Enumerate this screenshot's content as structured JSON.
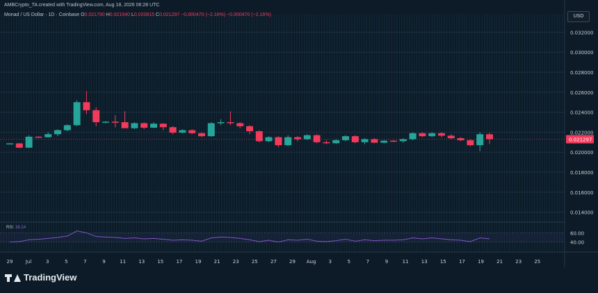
{
  "header": {
    "attribution": "AMBCrypto_TA created with TradingView.com, Aug 18, 2026 06:28 UTC",
    "symbol_desc": "Monad / US Dollar · 1D · Coinbase",
    "o_label": "O",
    "o_value": "0.021790",
    "h_label": "H",
    "h_value": "0.021940",
    "l_label": "L",
    "l_value": "0.020815",
    "c_label": "C",
    "c_value": "0.021297",
    "change": "−0.000470 (−2.16%)",
    "change2": "−0.000470 (−2.16%)"
  },
  "currency_button": "USD",
  "price_axis": {
    "ticks": [
      "0.032000",
      "0.030000",
      "0.028000",
      "0.026000",
      "0.024000",
      "0.022000",
      "0.020000",
      "0.018000",
      "0.016000",
      "0.014000"
    ],
    "last_price": "0.021297"
  },
  "rsi": {
    "label": "RSI",
    "value": "38.24",
    "levels": [
      "60.00",
      "40.00"
    ],
    "color": "#7e57c2"
  },
  "time_axis": [
    "29",
    "Jul",
    "3",
    "5",
    "7",
    "9",
    "11",
    "13",
    "15",
    "17",
    "19",
    "21",
    "23",
    "25",
    "27",
    "29",
    "Aug",
    "3",
    "5",
    "7",
    "9",
    "11",
    "13",
    "15",
    "17",
    "19",
    "21",
    "23",
    "25"
  ],
  "colors": {
    "up": "#26a69a",
    "down": "#f23b5c",
    "background": "#0c1b27",
    "rsi_line": "#7e57c2"
  },
  "brand": "TradingView",
  "chart_data": {
    "type": "candlestick",
    "y_range": [
      0.013,
      0.033
    ],
    "candles": [
      {
        "o": 0.02085,
        "h": 0.0209,
        "l": 0.0208,
        "c": 0.02088
      },
      {
        "o": 0.02088,
        "h": 0.02092,
        "l": 0.0204,
        "c": 0.02045
      },
      {
        "o": 0.02045,
        "h": 0.0217,
        "l": 0.0204,
        "c": 0.02155
      },
      {
        "o": 0.02155,
        "h": 0.0216,
        "l": 0.02145,
        "c": 0.0215
      },
      {
        "o": 0.0215,
        "h": 0.022,
        "l": 0.02145,
        "c": 0.0218
      },
      {
        "o": 0.0218,
        "h": 0.0223,
        "l": 0.0216,
        "c": 0.0222
      },
      {
        "o": 0.0222,
        "h": 0.0228,
        "l": 0.0221,
        "c": 0.0227
      },
      {
        "o": 0.0227,
        "h": 0.0252,
        "l": 0.0226,
        "c": 0.025
      },
      {
        "o": 0.025,
        "h": 0.0261,
        "l": 0.0238,
        "c": 0.0242
      },
      {
        "o": 0.0242,
        "h": 0.0245,
        "l": 0.0226,
        "c": 0.023
      },
      {
        "o": 0.023,
        "h": 0.0231,
        "l": 0.0229,
        "c": 0.02305
      },
      {
        "o": 0.02305,
        "h": 0.0237,
        "l": 0.0225,
        "c": 0.023
      },
      {
        "o": 0.023,
        "h": 0.0241,
        "l": 0.0225,
        "c": 0.0224
      },
      {
        "o": 0.0224,
        "h": 0.023,
        "l": 0.0223,
        "c": 0.0229
      },
      {
        "o": 0.0229,
        "h": 0.023,
        "l": 0.0223,
        "c": 0.02245
      },
      {
        "o": 0.02245,
        "h": 0.023,
        "l": 0.0224,
        "c": 0.02285
      },
      {
        "o": 0.02285,
        "h": 0.0229,
        "l": 0.0222,
        "c": 0.0225
      },
      {
        "o": 0.0225,
        "h": 0.0226,
        "l": 0.0218,
        "c": 0.02195
      },
      {
        "o": 0.02195,
        "h": 0.0223,
        "l": 0.0219,
        "c": 0.0222
      },
      {
        "o": 0.0222,
        "h": 0.0223,
        "l": 0.0218,
        "c": 0.0219
      },
      {
        "o": 0.0219,
        "h": 0.022,
        "l": 0.0215,
        "c": 0.0216
      },
      {
        "o": 0.0216,
        "h": 0.023,
        "l": 0.02155,
        "c": 0.0229
      },
      {
        "o": 0.0229,
        "h": 0.0233,
        "l": 0.0227,
        "c": 0.023
      },
      {
        "o": 0.023,
        "h": 0.0241,
        "l": 0.0227,
        "c": 0.0229
      },
      {
        "o": 0.0229,
        "h": 0.023,
        "l": 0.0224,
        "c": 0.0226
      },
      {
        "o": 0.0226,
        "h": 0.0227,
        "l": 0.0218,
        "c": 0.0221
      },
      {
        "o": 0.0221,
        "h": 0.0222,
        "l": 0.021,
        "c": 0.0211
      },
      {
        "o": 0.0211,
        "h": 0.0216,
        "l": 0.021,
        "c": 0.0215
      },
      {
        "o": 0.0215,
        "h": 0.0216,
        "l": 0.0205,
        "c": 0.0207
      },
      {
        "o": 0.0207,
        "h": 0.0217,
        "l": 0.0206,
        "c": 0.0215
      },
      {
        "o": 0.0215,
        "h": 0.0216,
        "l": 0.0211,
        "c": 0.0213
      },
      {
        "o": 0.0213,
        "h": 0.0218,
        "l": 0.0212,
        "c": 0.0217
      },
      {
        "o": 0.0217,
        "h": 0.0218,
        "l": 0.0209,
        "c": 0.021
      },
      {
        "o": 0.021,
        "h": 0.0212,
        "l": 0.0208,
        "c": 0.0209
      },
      {
        "o": 0.0209,
        "h": 0.0213,
        "l": 0.0208,
        "c": 0.0212
      },
      {
        "o": 0.0212,
        "h": 0.0217,
        "l": 0.0211,
        "c": 0.0216
      },
      {
        "o": 0.0216,
        "h": 0.0217,
        "l": 0.0209,
        "c": 0.021
      },
      {
        "o": 0.021,
        "h": 0.0214,
        "l": 0.0208,
        "c": 0.0213
      },
      {
        "o": 0.0213,
        "h": 0.0214,
        "l": 0.0209,
        "c": 0.02095
      },
      {
        "o": 0.02095,
        "h": 0.0212,
        "l": 0.0209,
        "c": 0.02115
      },
      {
        "o": 0.02115,
        "h": 0.0212,
        "l": 0.021,
        "c": 0.0211
      },
      {
        "o": 0.0211,
        "h": 0.0214,
        "l": 0.02095,
        "c": 0.0213
      },
      {
        "o": 0.0213,
        "h": 0.022,
        "l": 0.0212,
        "c": 0.0219
      },
      {
        "o": 0.0219,
        "h": 0.022,
        "l": 0.0215,
        "c": 0.0216
      },
      {
        "o": 0.0216,
        "h": 0.022,
        "l": 0.0215,
        "c": 0.0219
      },
      {
        "o": 0.0219,
        "h": 0.022,
        "l": 0.0215,
        "c": 0.02165
      },
      {
        "o": 0.02165,
        "h": 0.0218,
        "l": 0.0213,
        "c": 0.0214
      },
      {
        "o": 0.0214,
        "h": 0.0215,
        "l": 0.0211,
        "c": 0.0212
      },
      {
        "o": 0.0212,
        "h": 0.0213,
        "l": 0.0206,
        "c": 0.0207
      },
      {
        "o": 0.0207,
        "h": 0.022,
        "l": 0.0201,
        "c": 0.0218
      },
      {
        "o": 0.02179,
        "h": 0.02194,
        "l": 0.02081,
        "c": 0.0213
      }
    ],
    "rsi_values": [
      40,
      41,
      45,
      46,
      48,
      50,
      53,
      64,
      60,
      52,
      51,
      50,
      48,
      49,
      47,
      48,
      46,
      44,
      45,
      44,
      42,
      49,
      51,
      50,
      48,
      45,
      41,
      44,
      40,
      45,
      44,
      46,
      42,
      41,
      43,
      46,
      42,
      45,
      43,
      44,
      44,
      45,
      49,
      47,
      49,
      47,
      45,
      44,
      41,
      49,
      47
    ]
  }
}
